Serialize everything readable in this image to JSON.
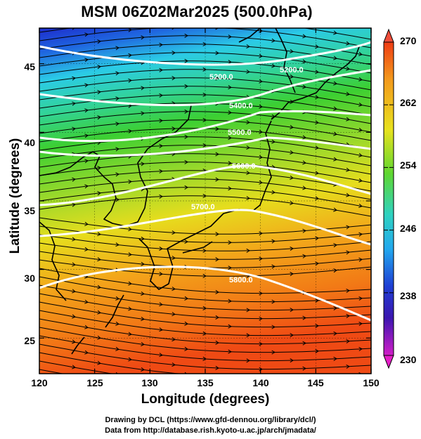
{
  "title": "MSM 06Z02Mar2025 (500.0hPa)",
  "x_axis": {
    "label": "Longitude (degrees)",
    "ticks": [
      120,
      125,
      130,
      135,
      140,
      145,
      150
    ],
    "range": [
      120,
      150
    ]
  },
  "y_axis": {
    "label": "Latitude  (degrees)",
    "ticks": [
      25,
      30,
      35,
      40,
      45
    ],
    "range": [
      22.4,
      47.6
    ]
  },
  "colorbar": {
    "min": 230,
    "max": 270,
    "ticks": [
      270,
      262,
      254,
      246,
      238,
      230
    ]
  },
  "contours": [
    {
      "label": "5200.0"
    },
    {
      "label": "5200.0"
    },
    {
      "label": "5400.0"
    },
    {
      "label": "5500.0"
    },
    {
      "label": "5600.0"
    },
    {
      "label": "5700.0"
    },
    {
      "label": "5800.0"
    }
  ],
  "credits": {
    "line1": "Drawing by DCL (https://www.gfd-dennou.org/library/dcl/)",
    "line2": "Data from http://database.rish.kyoto-u.ac.jp/arch/jmadata/"
  },
  "colors": {
    "cold": "#1e2fd0",
    "cool": "#2fd2e6",
    "mid": "#37d137",
    "warm": "#f2d21a",
    "hot": "#f25a17",
    "contour": "#ffffff"
  }
}
